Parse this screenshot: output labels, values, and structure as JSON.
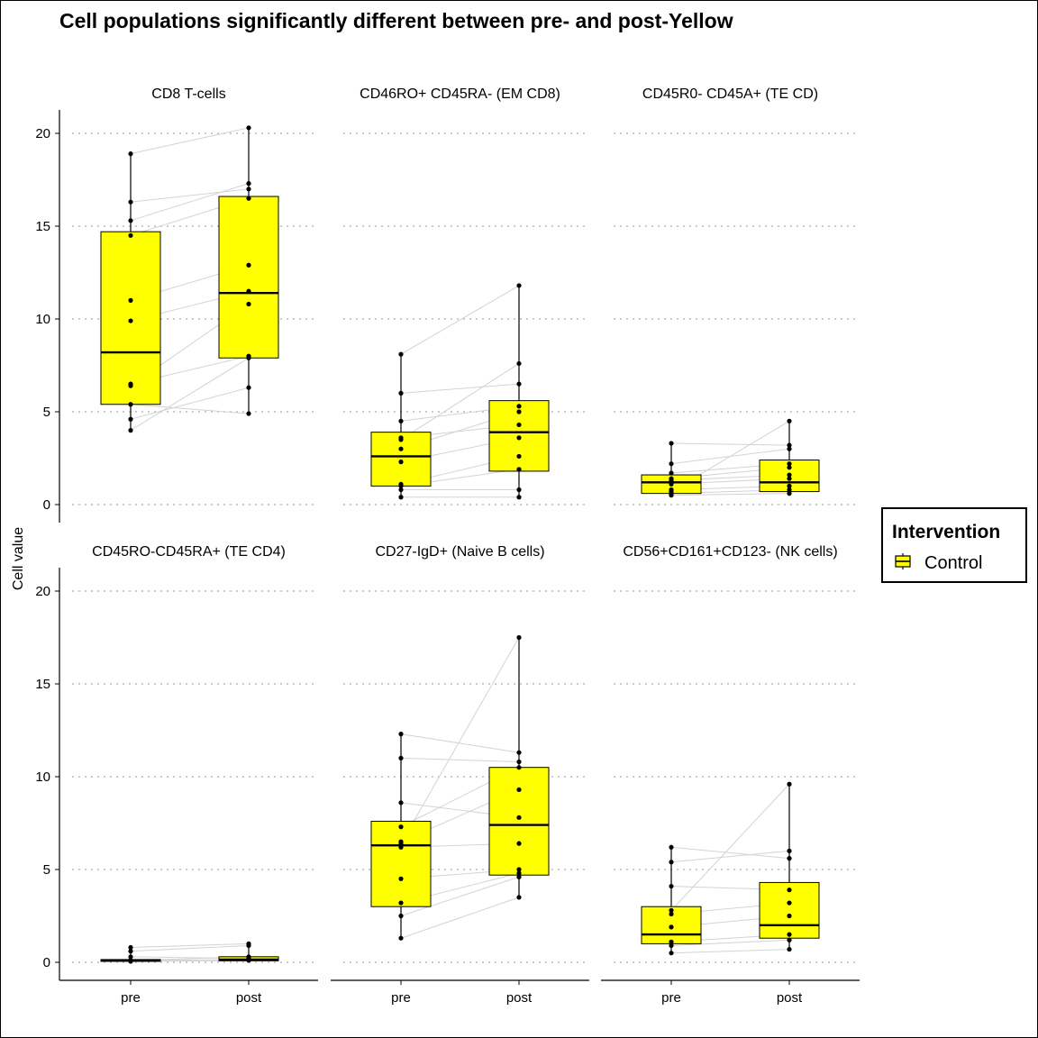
{
  "chart_data": {
    "type": "box",
    "title": "Cell populations significantly different between pre- and post-Yellow",
    "ylabel": "Cell value",
    "ylim": [
      0,
      21
    ],
    "yticks": [
      0,
      5,
      10,
      15,
      20
    ],
    "categories": [
      "pre",
      "post"
    ],
    "grid": "dotted horizontal",
    "box_color": "#ffff00",
    "legend": {
      "title": "Intervention",
      "items": [
        "Control"
      ],
      "placement": "right"
    },
    "panels": [
      {
        "name": "CD8 T-cells",
        "boxes": [
          {
            "group": "pre",
            "min": 4.0,
            "q1": 5.4,
            "median": 8.2,
            "q3": 14.7,
            "max": 18.9
          },
          {
            "group": "post",
            "min": 4.9,
            "q1": 7.9,
            "median": 11.4,
            "q3": 16.6,
            "max": 20.3
          }
        ],
        "pairs": [
          [
            4.0,
            7.9
          ],
          [
            4.6,
            6.3
          ],
          [
            5.4,
            4.9
          ],
          [
            6.4,
            10.8
          ],
          [
            6.5,
            8.0
          ],
          [
            9.9,
            11.5
          ],
          [
            11.0,
            12.9
          ],
          [
            14.5,
            16.5
          ],
          [
            15.3,
            17.3
          ],
          [
            16.3,
            17.0
          ],
          [
            18.9,
            20.3
          ]
        ]
      },
      {
        "name": "CD46RO+ CD45RA- (EM CD8)",
        "boxes": [
          {
            "group": "pre",
            "min": 0.4,
            "q1": 1.0,
            "median": 2.6,
            "q3": 3.9,
            "max": 8.1
          },
          {
            "group": "post",
            "min": 0.4,
            "q1": 1.8,
            "median": 3.9,
            "q3": 5.6,
            "max": 11.8
          }
        ],
        "pairs": [
          [
            0.4,
            0.4
          ],
          [
            0.8,
            0.8
          ],
          [
            1.0,
            1.9
          ],
          [
            1.1,
            2.6
          ],
          [
            2.3,
            3.6
          ],
          [
            3.0,
            5.0
          ],
          [
            3.6,
            4.3
          ],
          [
            4.5,
            5.3
          ],
          [
            6.0,
            6.5
          ],
          [
            8.1,
            11.8
          ],
          [
            3.5,
            7.6
          ]
        ]
      },
      {
        "name": "CD45R0- CD45A+ (TE CD)",
        "boxes": [
          {
            "group": "pre",
            "min": 0.5,
            "q1": 0.6,
            "median": 1.2,
            "q3": 1.6,
            "max": 3.3
          },
          {
            "group": "post",
            "min": 0.6,
            "q1": 0.7,
            "median": 1.2,
            "q3": 2.4,
            "max": 4.5
          }
        ],
        "pairs": [
          [
            0.5,
            0.6
          ],
          [
            0.6,
            0.8
          ],
          [
            0.8,
            1.0
          ],
          [
            1.1,
            1.4
          ],
          [
            1.3,
            1.6
          ],
          [
            1.4,
            2.0
          ],
          [
            1.7,
            2.2
          ],
          [
            2.2,
            3.0
          ],
          [
            3.3,
            3.2
          ],
          [
            0.7,
            4.5
          ]
        ]
      },
      {
        "name": "CD45RO-CD45RA+ (TE CD4)",
        "boxes": [
          {
            "group": "pre",
            "min": 0.05,
            "q1": 0.05,
            "median": 0.1,
            "q3": 0.15,
            "max": 0.8
          },
          {
            "group": "post",
            "min": 0.05,
            "q1": 0.08,
            "median": 0.15,
            "q3": 0.3,
            "max": 1.0
          }
        ],
        "pairs": [
          [
            0.05,
            0.1
          ],
          [
            0.1,
            0.15
          ],
          [
            0.3,
            0.2
          ],
          [
            0.6,
            0.9
          ],
          [
            0.8,
            1.0
          ],
          [
            0.1,
            0.3
          ]
        ]
      },
      {
        "name": "CD27-IgD+ (Naive B cells)",
        "boxes": [
          {
            "group": "pre",
            "min": 1.3,
            "q1": 3.0,
            "median": 6.3,
            "q3": 7.6,
            "max": 12.3
          },
          {
            "group": "post",
            "min": 3.5,
            "q1": 4.7,
            "median": 7.4,
            "q3": 10.5,
            "max": 17.5
          }
        ],
        "pairs": [
          [
            1.3,
            3.5
          ],
          [
            2.5,
            4.6
          ],
          [
            3.2,
            4.8
          ],
          [
            4.5,
            5.0
          ],
          [
            6.2,
            6.4
          ],
          [
            6.5,
            9.3
          ],
          [
            7.3,
            10.5
          ],
          [
            8.6,
            7.8
          ],
          [
            11.0,
            10.8
          ],
          [
            12.3,
            11.3
          ],
          [
            6.4,
            17.5
          ]
        ]
      },
      {
        "name": "CD56+CD161+CD123- (NK cells)",
        "boxes": [
          {
            "group": "pre",
            "min": 0.5,
            "q1": 1.0,
            "median": 1.5,
            "q3": 3.0,
            "max": 6.2
          },
          {
            "group": "post",
            "min": 0.7,
            "q1": 1.3,
            "median": 2.0,
            "q3": 4.3,
            "max": 9.6
          }
        ],
        "pairs": [
          [
            0.5,
            0.7
          ],
          [
            0.9,
            1.2
          ],
          [
            1.1,
            1.5
          ],
          [
            1.9,
            2.5
          ],
          [
            2.6,
            3.2
          ],
          [
            4.1,
            3.9
          ],
          [
            5.4,
            6.0
          ],
          [
            6.2,
            5.6
          ],
          [
            2.8,
            9.6
          ]
        ]
      }
    ]
  }
}
